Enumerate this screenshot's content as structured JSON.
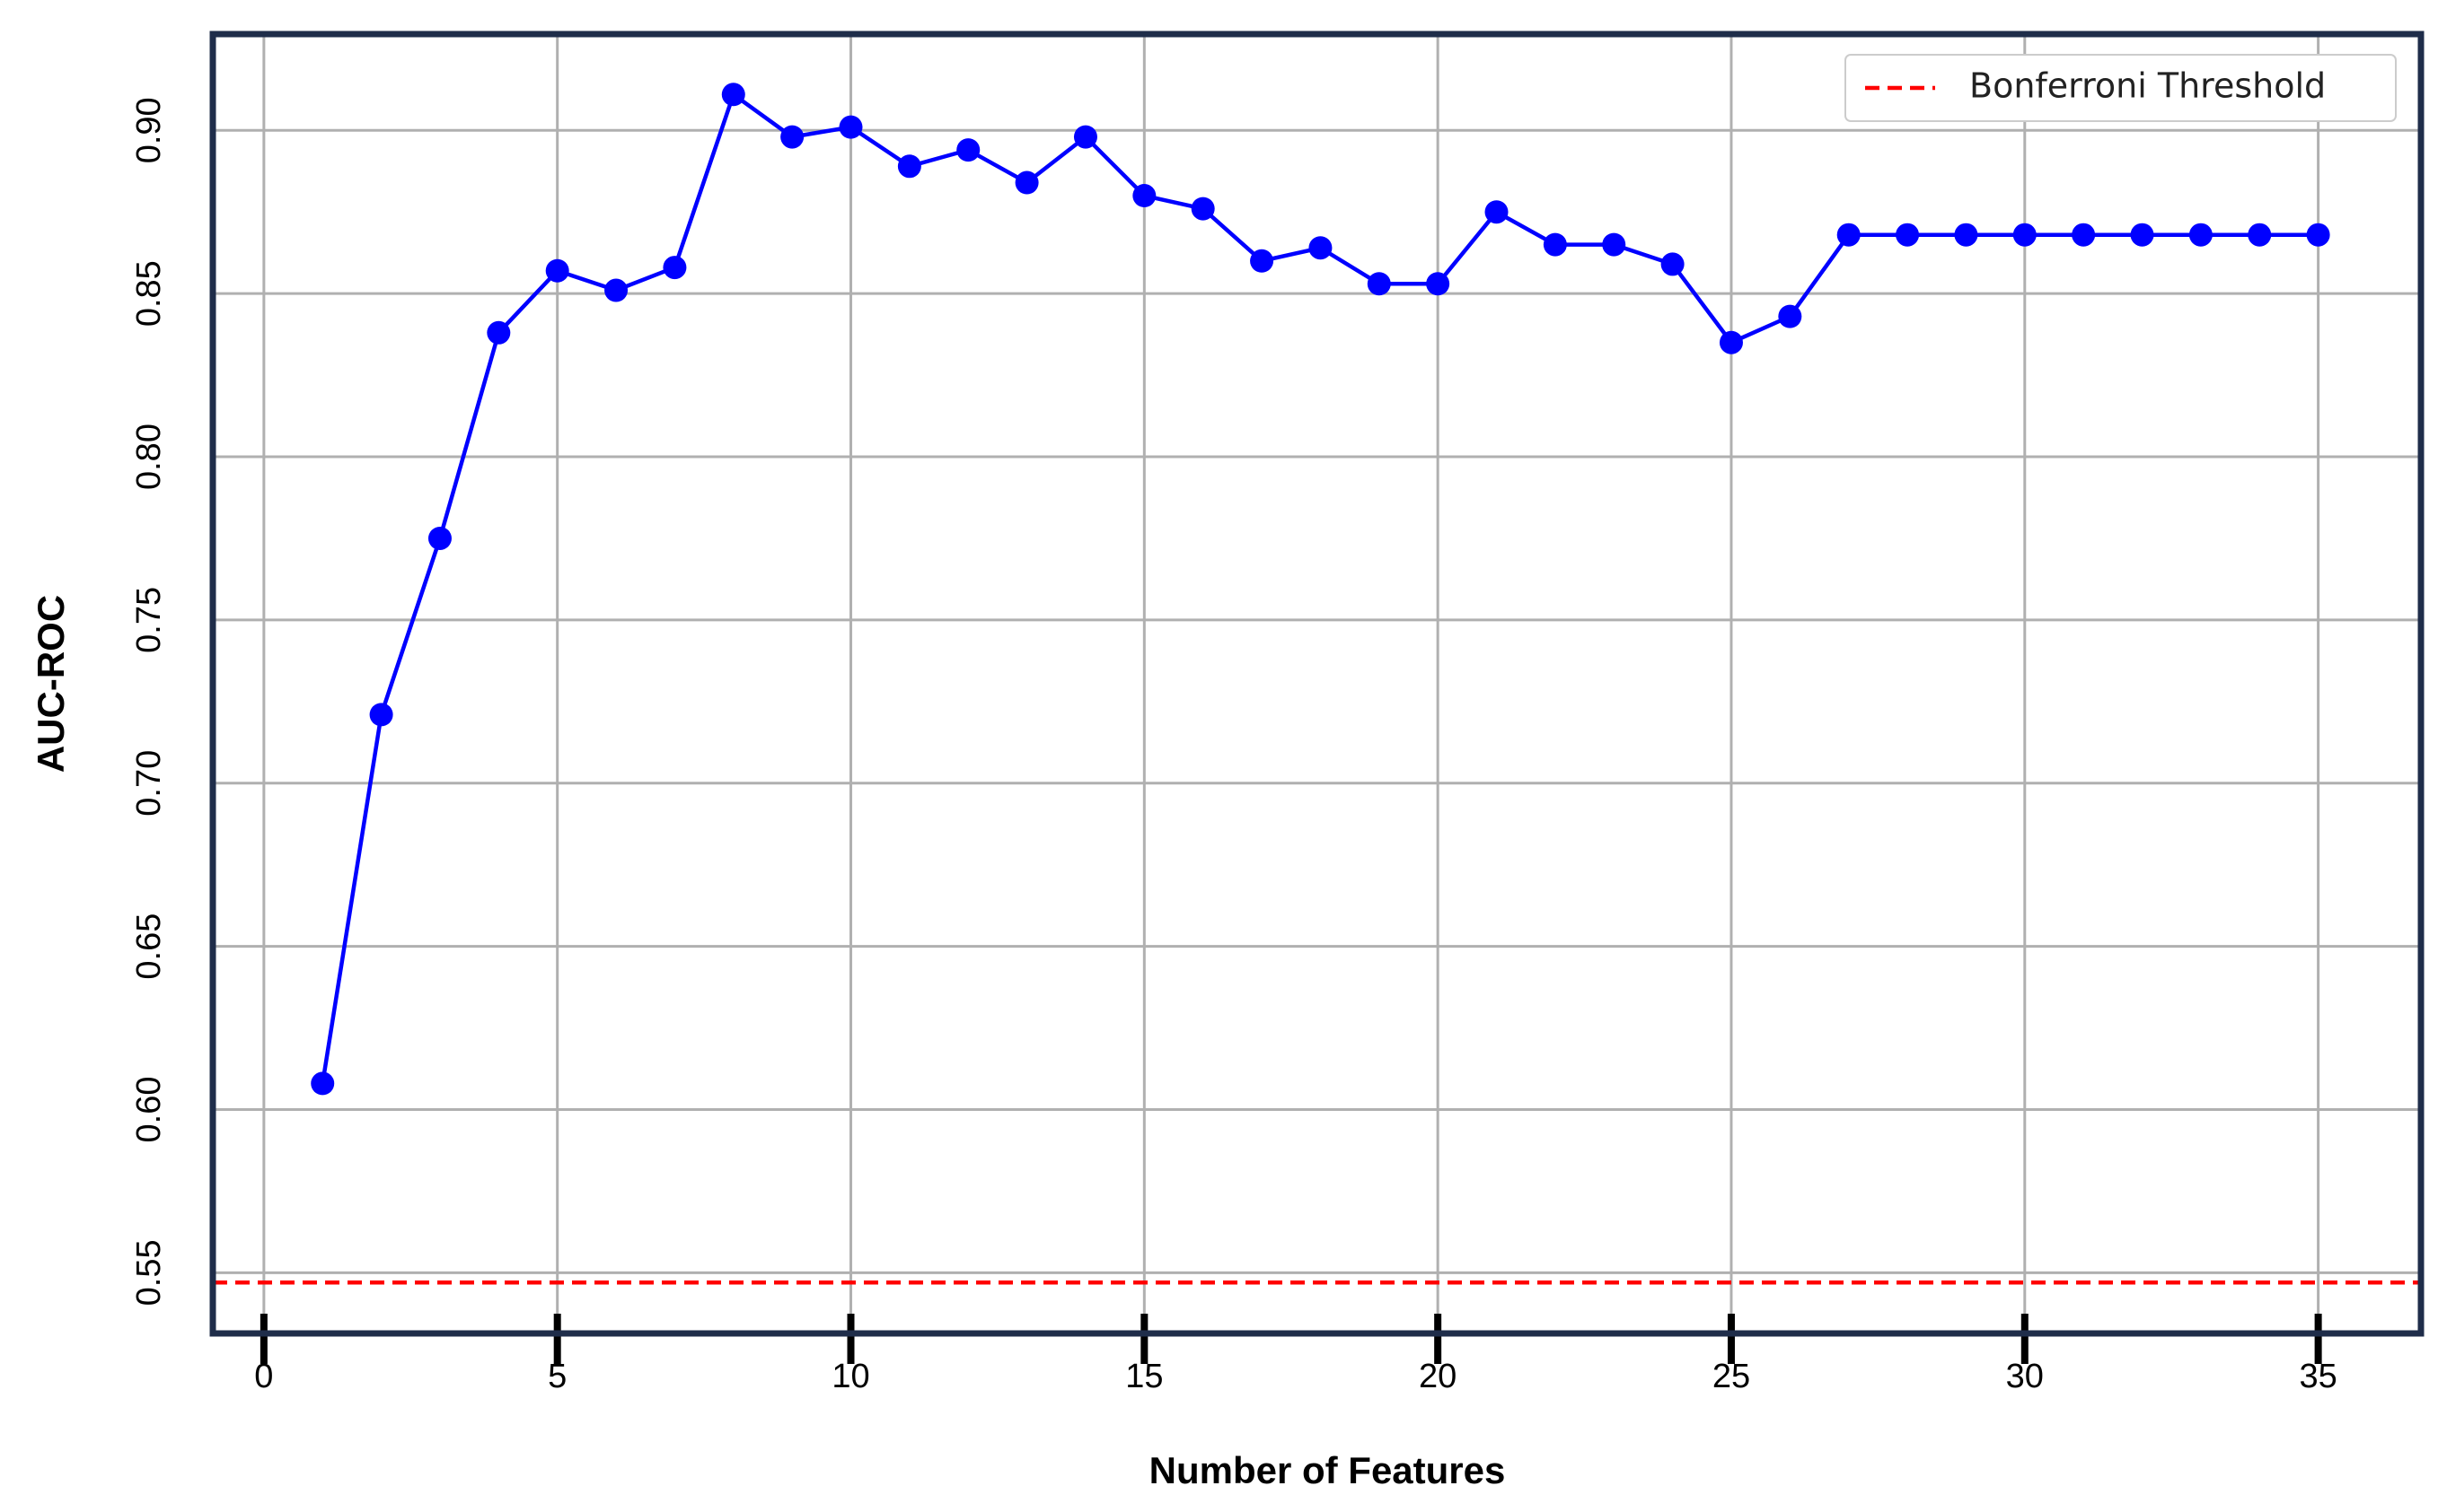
{
  "chart_data": {
    "type": "line",
    "xlabel": "Number of Features",
    "ylabel": "AUC-ROC",
    "x": [
      1,
      2,
      3,
      4,
      5,
      6,
      7,
      8,
      9,
      10,
      11,
      12,
      13,
      14,
      15,
      16,
      17,
      18,
      19,
      20,
      21,
      22,
      23,
      24,
      25,
      26,
      27,
      28,
      29,
      30,
      31,
      32,
      33,
      34,
      35
    ],
    "series": [
      {
        "color": "#0000ff",
        "values": [
          0.608,
          0.721,
          0.775,
          0.838,
          0.857,
          0.851,
          0.858,
          0.911,
          0.898,
          0.901,
          0.889,
          0.894,
          0.884,
          0.898,
          0.88,
          0.876,
          0.86,
          0.864,
          0.853,
          0.853,
          0.875,
          0.865,
          0.865,
          0.859,
          0.835,
          0.843,
          0.868,
          0.868,
          0.868,
          0.868,
          0.868,
          0.868,
          0.868,
          0.868,
          0.868
        ]
      }
    ],
    "reference_lines": [
      {
        "name": "Bonferroni Threshold",
        "value": 0.547,
        "color": "#ff0000"
      }
    ],
    "xlim": [
      -0.87,
      36.75
    ],
    "ylim": [
      0.5314,
      0.9295
    ],
    "xticks": [
      0,
      5,
      10,
      15,
      20,
      25,
      30,
      35
    ],
    "yticks": [
      0.55,
      {
        "value": 0.6,
        "label": "0.60"
      },
      0.65,
      {
        "value": 0.7,
        "label": "0.70"
      },
      0.75,
      {
        "value": 0.8,
        "label": "0.80"
      },
      0.85,
      {
        "value": 0.9,
        "label": "0.90"
      }
    ],
    "grid": true,
    "legend": "upper right"
  }
}
